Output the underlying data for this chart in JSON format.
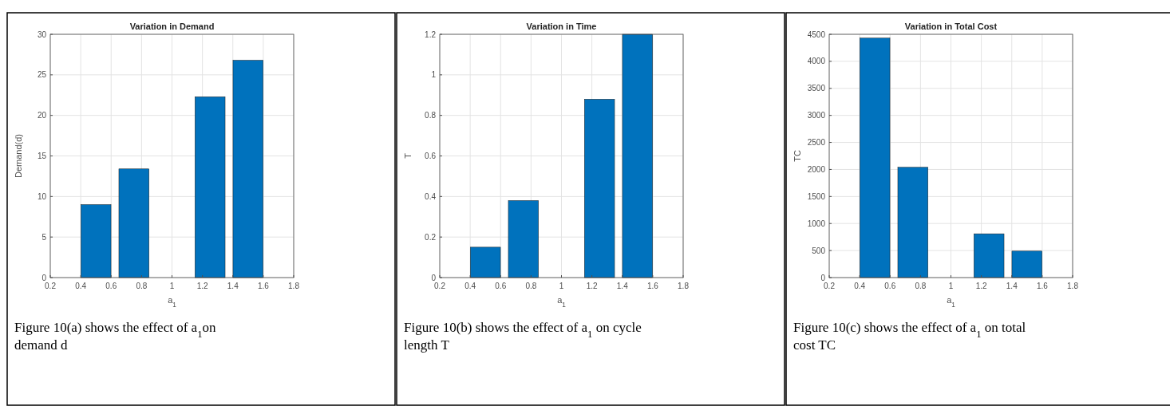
{
  "chart_data": [
    {
      "type": "bar",
      "title": "Variation in Demand",
      "xlabel": "a$_{1}$",
      "ylabel": "Demand(d)",
      "x": [
        0.5,
        0.75,
        1.25,
        1.5
      ],
      "values": [
        9,
        13.4,
        22.3,
        26.8
      ],
      "color": "#0072bd",
      "xlim": [
        0.2,
        1.8
      ],
      "xticks": [
        0.2,
        0.4,
        0.6,
        0.8,
        1,
        1.2,
        1.4,
        1.6,
        1.8
      ],
      "ylim": [
        0,
        30
      ],
      "yticks": [
        0,
        5,
        10,
        15,
        20,
        25,
        30
      ],
      "grid": true,
      "annotations": [
        "Figure 10(a) shows the effect of a$_{1}$on demand d"
      ]
    },
    {
      "type": "bar",
      "title": "Variation in Time",
      "xlabel": "a$_{1}$",
      "ylabel": "T",
      "x": [
        0.5,
        0.75,
        1.25,
        1.5
      ],
      "values": [
        0.15,
        0.38,
        0.88,
        1.2
      ],
      "color": "#0072bd",
      "xlim": [
        0.2,
        1.8
      ],
      "xticks": [
        0.2,
        0.4,
        0.6,
        0.8,
        1,
        1.2,
        1.4,
        1.6,
        1.8
      ],
      "ylim": [
        0,
        1.2
      ],
      "yticks": [
        0,
        0.2,
        0.4,
        0.6,
        0.8,
        1,
        1.2
      ],
      "grid": true,
      "annotations": [
        "Figure 10(b) shows the effect of a$_{1}$ on cycle length T"
      ]
    },
    {
      "type": "bar",
      "title": "Variation in Total Cost",
      "xlabel": "a$_{1}$",
      "ylabel": "TC",
      "x": [
        0.5,
        0.75,
        1.25,
        1.5
      ],
      "values": [
        4430,
        2040,
        810,
        490
      ],
      "color": "#0072bd",
      "xlim": [
        0.2,
        1.8
      ],
      "xticks": [
        0.2,
        0.4,
        0.6,
        0.8,
        1,
        1.2,
        1.4,
        1.6,
        1.8
      ],
      "ylim": [
        0,
        4500
      ],
      "yticks": [
        0,
        500,
        1000,
        1500,
        2000,
        2500,
        3000,
        3500,
        4000,
        4500
      ],
      "grid": true,
      "annotations": [
        "Figure 10(c) shows the effect of a$_{1}$ on total cost TC"
      ]
    }
  ]
}
